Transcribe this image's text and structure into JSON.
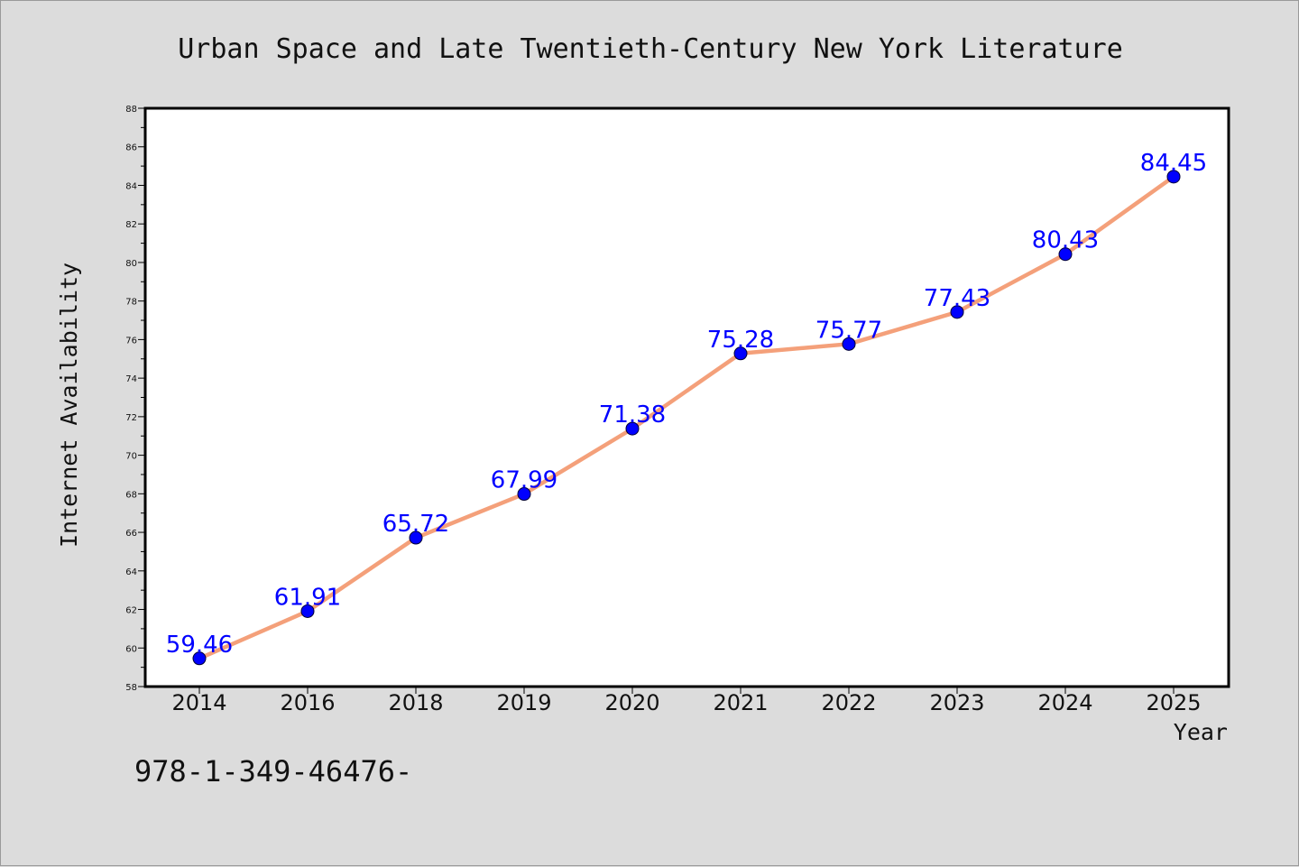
{
  "footer_text": "978-1-349-46476-",
  "chart_data": {
    "type": "line",
    "title": "Urban Space and Late Twentieth-Century New York Literature",
    "xlabel": "Year",
    "ylabel": "Internet Availability",
    "categories": [
      "2014",
      "2016",
      "2018",
      "2019",
      "2020",
      "2021",
      "2022",
      "2023",
      "2024",
      "2025"
    ],
    "values": [
      59.46,
      61.91,
      65.72,
      67.99,
      71.38,
      75.28,
      75.77,
      77.43,
      80.43,
      84.45
    ],
    "data_labels": [
      "59.46",
      "61.91",
      "65.72",
      "67.99",
      "71.38",
      "75.28",
      "75.77",
      "77.43",
      "80.43",
      "84.45"
    ],
    "ylim": [
      58,
      88
    ],
    "yticks": [
      "58",
      "60",
      "62",
      "64",
      "66",
      "68",
      "70",
      "72",
      "74",
      "76",
      "78",
      "80",
      "82",
      "84",
      "86",
      "88"
    ],
    "grid": false,
    "line_color": "#f4a07a",
    "marker_color": "#0000ff",
    "label_color": "#0000ff",
    "plot_background": "#ffffff",
    "figure_background": "#dcdcdc"
  }
}
